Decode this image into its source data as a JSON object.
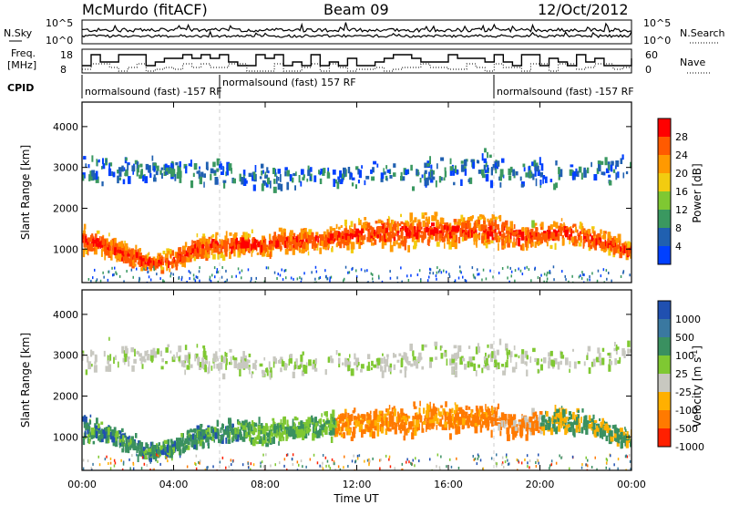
{
  "header": {
    "station": "McMurdo (fitACF)",
    "beam": "Beam 09",
    "date": "12/Oct/2012"
  },
  "noise_panel": {
    "left_label": "N.Sky",
    "right_label": "N.Search",
    "left_ticks": [
      "10^5",
      "10^0"
    ],
    "right_ticks": [
      "10^5",
      "10^0"
    ]
  },
  "freq_panel": {
    "left_label_line1": "Freq.",
    "left_label_line2": "[MHz]",
    "right_label": "Nave",
    "left_ticks": [
      "18",
      "8"
    ],
    "right_ticks": [
      "60",
      "0"
    ]
  },
  "cpid": {
    "label": "CPID",
    "segments": [
      {
        "text": "normalsound (fast) -157 RF",
        "start_hour": 0
      },
      {
        "text": "normalsound (fast) 157 RF",
        "start_hour": 6
      },
      {
        "text": "normalsound (fast) -157 RF",
        "start_hour": 18
      }
    ]
  },
  "power_colorbar": {
    "label": "Power [dB]",
    "ticks": [
      "28",
      "24",
      "20",
      "16",
      "12",
      "8",
      "4"
    ],
    "colors": [
      "#ff0000",
      "#ff5a00",
      "#ff9900",
      "#f2cc10",
      "#7fc832",
      "#3a9860",
      "#2060b0",
      "#0040ff"
    ]
  },
  "velocity_colorbar": {
    "label": "Velocity [m s^-1]",
    "label_main": "Velocity [m s",
    "label_sup": "-1",
    "label_close": "]",
    "ticks": [
      "1000",
      "500",
      "100",
      "25",
      "-25",
      "-100",
      "-500",
      "-1000"
    ],
    "colors": [
      "#2050b0",
      "#3a78a0",
      "#3a9060",
      "#7fc832",
      "#c8c8c0",
      "#ffb000",
      "#ff7a00",
      "#ff2000"
    ]
  },
  "chart_data": {
    "type": "heatmap",
    "ylabel": "Slant Range [km]",
    "xlabel": "Time UT",
    "x_tick_labels": [
      "00:00",
      "04:00",
      "08:00",
      "12:00",
      "16:00",
      "20:00",
      "00:00"
    ],
    "xlim_hours": [
      0,
      24
    ],
    "y_tick_labels": [
      "1000",
      "2000",
      "3000",
      "4000"
    ],
    "ylim": [
      180,
      4600
    ],
    "scatter_bands": [
      {
        "name": "",
        "hours": [
          0,
          1,
          2,
          3,
          4,
          5,
          6,
          7,
          8,
          9,
          10,
          11,
          12,
          13,
          14,
          15,
          16,
          17,
          18,
          19,
          20,
          21,
          22,
          23,
          24
        ],
        "center_km": [
          1300,
          1150,
          900,
          700,
          800,
          1100,
          1150,
          1200,
          1150,
          1250,
          1300,
          1350,
          1400,
          1500,
          1450,
          1550,
          1500,
          1550,
          1500,
          1350,
          1400,
          1500,
          1350,
          1200,
          1000
        ],
        "width_km": [
          800,
          600,
          700,
          500,
          600,
          700,
          700,
          650,
          700,
          700,
          700,
          750,
          850,
          900,
          900,
          950,
          850,
          800,
          900,
          750,
          700,
          750,
          650,
          600,
          500
        ]
      },
      {
        "name": "",
        "hours": [
          0,
          2,
          4,
          6,
          8,
          10,
          12,
          14,
          16,
          18,
          20,
          22,
          24
        ],
        "center_km": [
          3000,
          3000,
          3000,
          2900,
          2800,
          2900,
          2850,
          2900,
          3000,
          3000,
          2900,
          3000,
          3100
        ],
        "width_km": [
          1000,
          900,
          800,
          800,
          700,
          800,
          700,
          800,
          900,
          1000,
          800,
          900,
          900
        ]
      }
    ],
    "power_db_peak": 28,
    "velocity_range_m_s": [
      -1000,
      1000
    ]
  }
}
